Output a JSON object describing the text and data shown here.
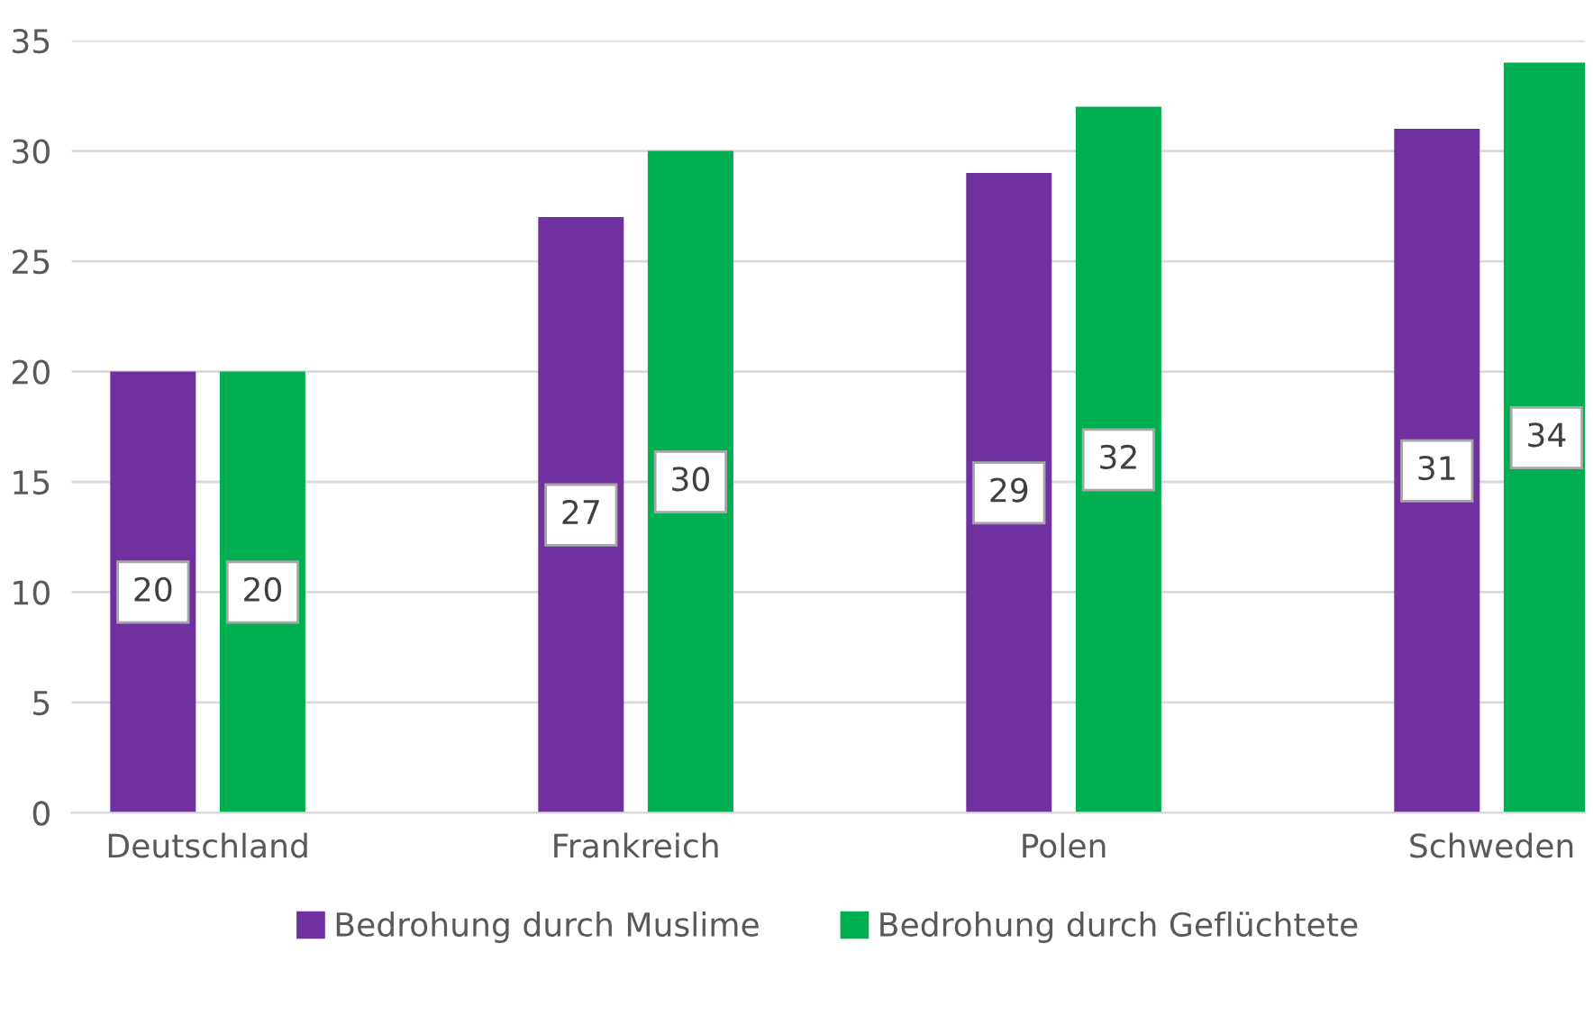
{
  "chart_data": {
    "type": "bar",
    "categories": [
      "Deutschland",
      "Frankreich",
      "Polen",
      "Schweden"
    ],
    "series": [
      {
        "name": "Bedrohung durch Muslime",
        "color": "#7030a0",
        "values": [
          20,
          27,
          29,
          31
        ]
      },
      {
        "name": "Bedrohung durch Geflüchtete",
        "color": "#00b050",
        "values": [
          20,
          30,
          32,
          34
        ]
      }
    ],
    "ylim": [
      0,
      35
    ],
    "yticks": [
      0,
      5,
      10,
      15,
      20,
      25,
      30,
      35
    ],
    "grid": "y",
    "legend": "bottom",
    "data_labels": true
  }
}
